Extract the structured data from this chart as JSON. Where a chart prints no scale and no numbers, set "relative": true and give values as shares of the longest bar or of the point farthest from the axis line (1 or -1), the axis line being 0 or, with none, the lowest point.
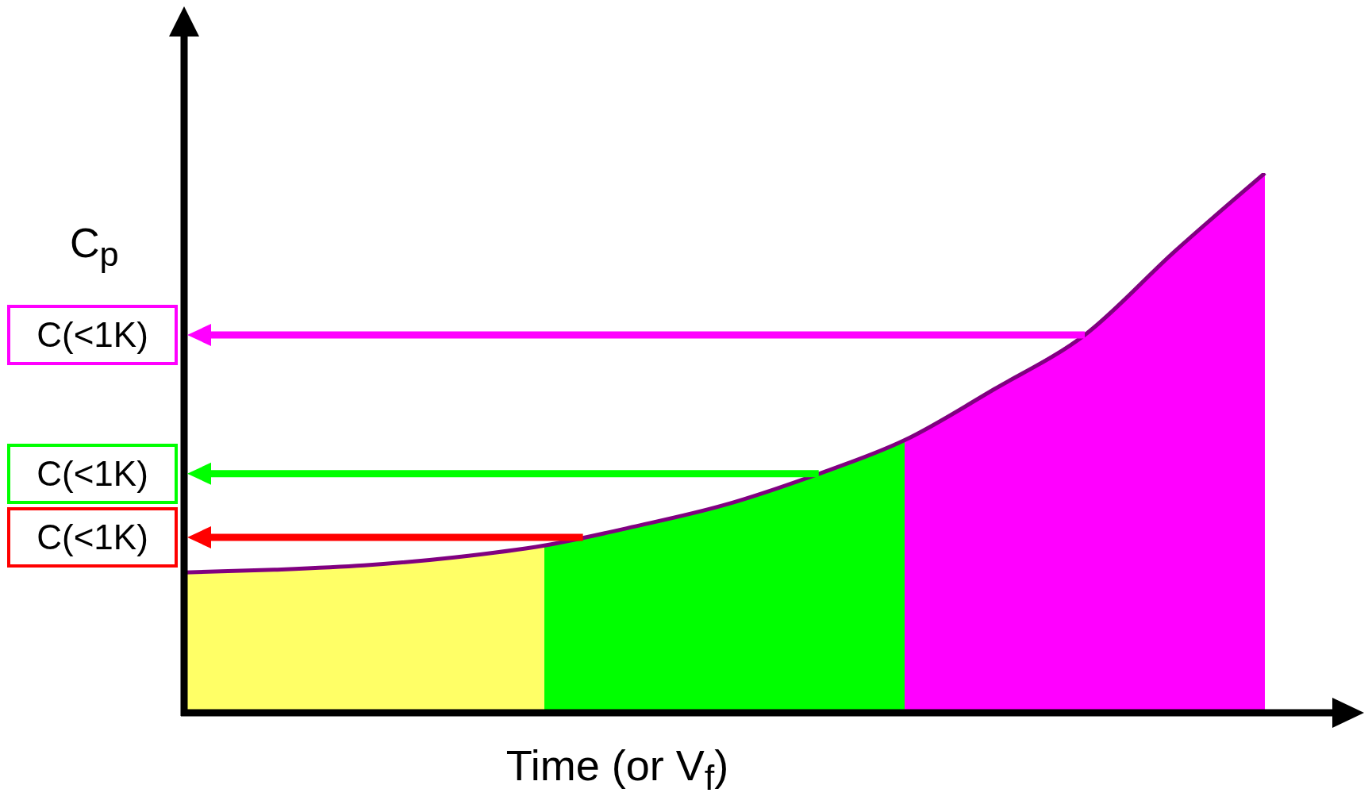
{
  "chart_data": {
    "type": "line",
    "relative": true,
    "xlabel": "Time (or V$_{f}$)",
    "ylabel": "C$_{p}$",
    "categories": [
      null,
      null,
      null,
      null,
      null,
      null,
      null,
      null,
      null,
      null,
      null,
      null,
      null
    ],
    "series": [
      {
        "type": "area",
        "color": "#ffff66",
        "values": [
          0.26,
          0.265,
          0.273,
          0.288,
          0.31,
          null,
          null,
          null,
          null,
          null,
          null,
          null,
          null
        ]
      },
      {
        "type": "area",
        "color": "#00ff00",
        "values": [
          null,
          null,
          null,
          null,
          0.31,
          0.345,
          0.385,
          0.44,
          0.505,
          null,
          null,
          null,
          null
        ]
      },
      {
        "type": "area",
        "color": "#ff00ff",
        "values": [
          null,
          null,
          null,
          null,
          null,
          null,
          null,
          null,
          0.505,
          0.6,
          0.7,
          0.855,
          1.0
        ]
      },
      {
        "color": "#800080",
        "values": [
          0.26,
          0.265,
          0.273,
          0.288,
          0.31,
          0.345,
          0.385,
          0.44,
          0.505,
          0.6,
          0.7,
          0.855,
          1.0
        ]
      }
    ],
    "ref_lines": [
      {
        "axis": "y",
        "value": 0.7,
        "label": "C(<1K)",
        "color": "#ff00ff"
      },
      {
        "axis": "y",
        "value": 0.443,
        "label": "C(<1K)",
        "color": "#00ff00"
      },
      {
        "axis": "y",
        "value": 0.325,
        "label": "C(<1K)",
        "color": "#ff0000"
      }
    ],
    "legend": false,
    "grid": false,
    "marker": "none",
    "line_style": "solid"
  }
}
